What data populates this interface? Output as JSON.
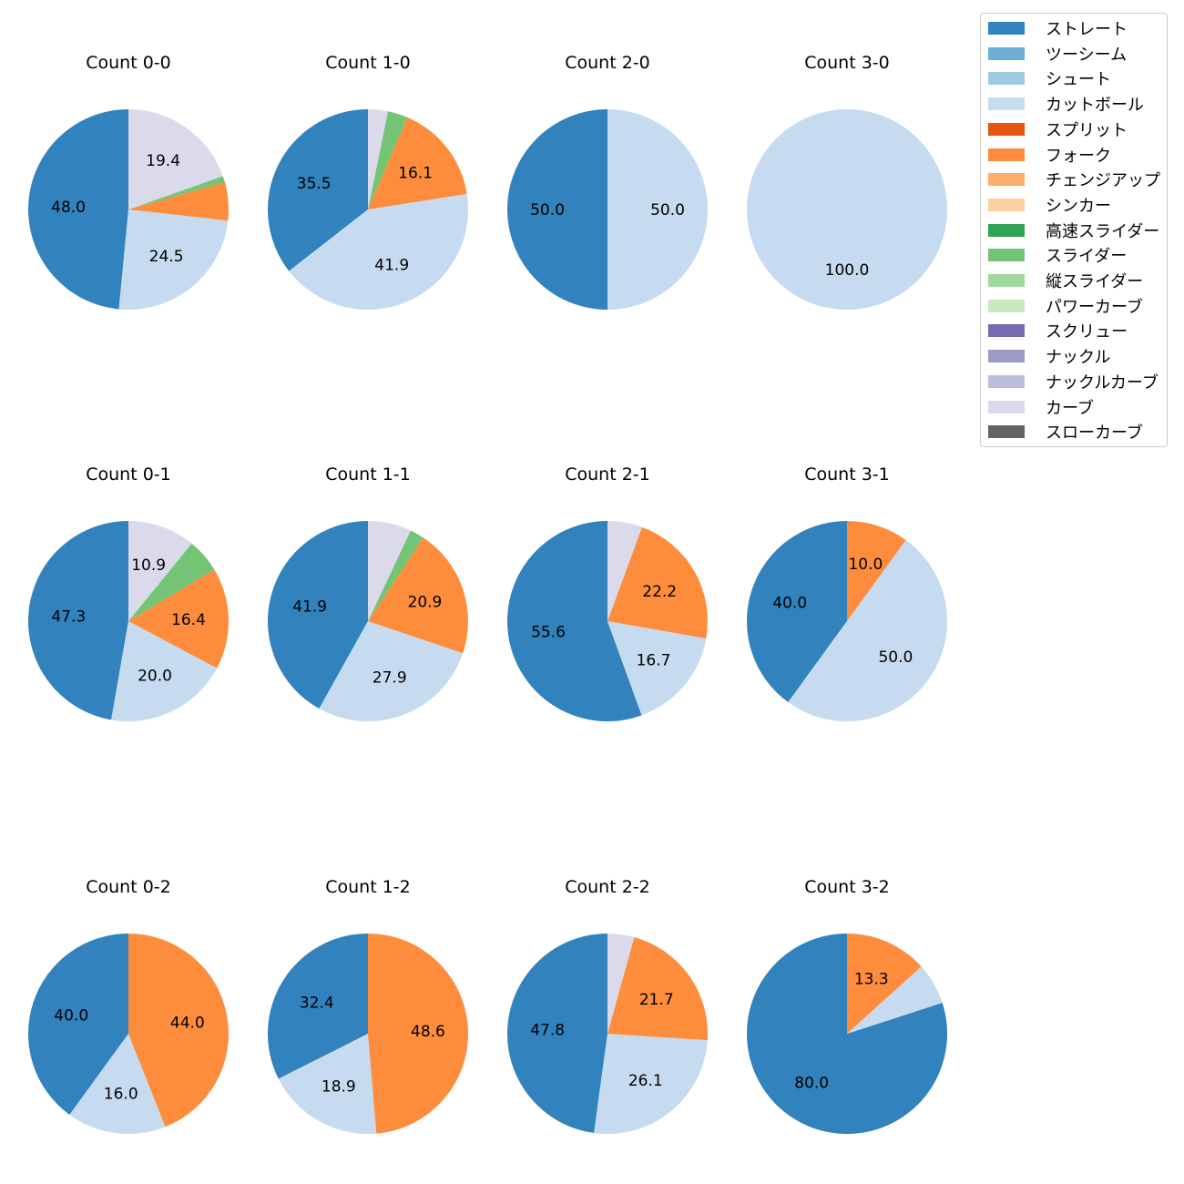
{
  "chart_data": {
    "type": "pie",
    "pitch_types": [
      {
        "name": "ストレート",
        "color": "#3182bd"
      },
      {
        "name": "ツーシーム",
        "color": "#6baed6"
      },
      {
        "name": "シュート",
        "color": "#9ecae1"
      },
      {
        "name": "カットボール",
        "color": "#c6dbef"
      },
      {
        "name": "スプリット",
        "color": "#e6550d"
      },
      {
        "name": "フォーク",
        "color": "#fd8d3c"
      },
      {
        "name": "チェンジアップ",
        "color": "#fdae6b"
      },
      {
        "name": "シンカー",
        "color": "#fdd0a2"
      },
      {
        "name": "高速スライダー",
        "color": "#31a354"
      },
      {
        "name": "スライダー",
        "color": "#74c476"
      },
      {
        "name": "縦スライダー",
        "color": "#a1d99b"
      },
      {
        "name": "パワーカーブ",
        "color": "#c7e9c0"
      },
      {
        "name": "スクリュー",
        "color": "#756bb1"
      },
      {
        "name": "ナックル",
        "color": "#9e9ac8"
      },
      {
        "name": "ナックルカーブ",
        "color": "#bcbddc"
      },
      {
        "name": "カーブ",
        "color": "#dadaeb"
      },
      {
        "name": "スローカーブ",
        "color": "#636363"
      }
    ],
    "charts": [
      {
        "title": "Count 0-0",
        "slices": [
          {
            "pitch": "ストレート",
            "value": 48.0,
            "label": "48.0"
          },
          {
            "pitch": "カットボール",
            "value": 24.5,
            "label": "24.5"
          },
          {
            "pitch": "フォーク",
            "value": 6.1,
            "label": ""
          },
          {
            "pitch": "スライダー",
            "value": 1.0,
            "label": ""
          },
          {
            "pitch": "カーブ",
            "value": 19.4,
            "label": "19.4"
          }
        ]
      },
      {
        "title": "Count 1-0",
        "slices": [
          {
            "pitch": "ストレート",
            "value": 35.5,
            "label": "35.5"
          },
          {
            "pitch": "カットボール",
            "value": 41.9,
            "label": "41.9"
          },
          {
            "pitch": "フォーク",
            "value": 16.1,
            "label": "16.1"
          },
          {
            "pitch": "スライダー",
            "value": 3.2,
            "label": ""
          },
          {
            "pitch": "カーブ",
            "value": 3.2,
            "label": ""
          }
        ]
      },
      {
        "title": "Count 2-0",
        "slices": [
          {
            "pitch": "ストレート",
            "value": 50.0,
            "label": "50.0"
          },
          {
            "pitch": "カットボール",
            "value": 50.0,
            "label": "50.0"
          }
        ]
      },
      {
        "title": "Count 3-0",
        "slices": [
          {
            "pitch": "カットボール",
            "value": 100.0,
            "label": "100.0"
          }
        ]
      },
      {
        "title": "Count 0-1",
        "slices": [
          {
            "pitch": "ストレート",
            "value": 47.3,
            "label": "47.3"
          },
          {
            "pitch": "カットボール",
            "value": 20.0,
            "label": "20.0"
          },
          {
            "pitch": "フォーク",
            "value": 16.4,
            "label": "16.4"
          },
          {
            "pitch": "スライダー",
            "value": 5.5,
            "label": ""
          },
          {
            "pitch": "カーブ",
            "value": 10.9,
            "label": "10.9"
          }
        ]
      },
      {
        "title": "Count 1-1",
        "slices": [
          {
            "pitch": "ストレート",
            "value": 41.9,
            "label": "41.9"
          },
          {
            "pitch": "カットボール",
            "value": 27.9,
            "label": "27.9"
          },
          {
            "pitch": "フォーク",
            "value": 20.9,
            "label": "20.9"
          },
          {
            "pitch": "スライダー",
            "value": 2.3,
            "label": ""
          },
          {
            "pitch": "カーブ",
            "value": 7.0,
            "label": ""
          }
        ]
      },
      {
        "title": "Count 2-1",
        "slices": [
          {
            "pitch": "ストレート",
            "value": 55.6,
            "label": "55.6"
          },
          {
            "pitch": "カットボール",
            "value": 16.7,
            "label": "16.7"
          },
          {
            "pitch": "フォーク",
            "value": 22.2,
            "label": "22.2"
          },
          {
            "pitch": "カーブ",
            "value": 5.6,
            "label": ""
          }
        ]
      },
      {
        "title": "Count 3-1",
        "slices": [
          {
            "pitch": "ストレート",
            "value": 40.0,
            "label": "40.0"
          },
          {
            "pitch": "カットボール",
            "value": 50.0,
            "label": "50.0"
          },
          {
            "pitch": "フォーク",
            "value": 10.0,
            "label": "10.0"
          }
        ]
      },
      {
        "title": "Count 0-2",
        "slices": [
          {
            "pitch": "ストレート",
            "value": 40.0,
            "label": "40.0"
          },
          {
            "pitch": "カットボール",
            "value": 16.0,
            "label": "16.0"
          },
          {
            "pitch": "フォーク",
            "value": 44.0,
            "label": "44.0"
          }
        ]
      },
      {
        "title": "Count 1-2",
        "slices": [
          {
            "pitch": "ストレート",
            "value": 32.4,
            "label": "32.4"
          },
          {
            "pitch": "カットボール",
            "value": 18.9,
            "label": "18.9"
          },
          {
            "pitch": "フォーク",
            "value": 48.6,
            "label": "48.6"
          }
        ]
      },
      {
        "title": "Count 2-2",
        "slices": [
          {
            "pitch": "ストレート",
            "value": 47.8,
            "label": "47.8"
          },
          {
            "pitch": "カットボール",
            "value": 26.1,
            "label": "26.1"
          },
          {
            "pitch": "フォーク",
            "value": 21.7,
            "label": "21.7"
          },
          {
            "pitch": "カーブ",
            "value": 4.3,
            "label": ""
          }
        ]
      },
      {
        "title": "Count 3-2",
        "slices": [
          {
            "pitch": "ストレート",
            "value": 80.0,
            "label": "80.0"
          },
          {
            "pitch": "カットボール",
            "value": 6.7,
            "label": ""
          },
          {
            "pitch": "フォーク",
            "value": 13.3,
            "label": "13.3"
          }
        ]
      }
    ],
    "legend_position": "top-right"
  }
}
